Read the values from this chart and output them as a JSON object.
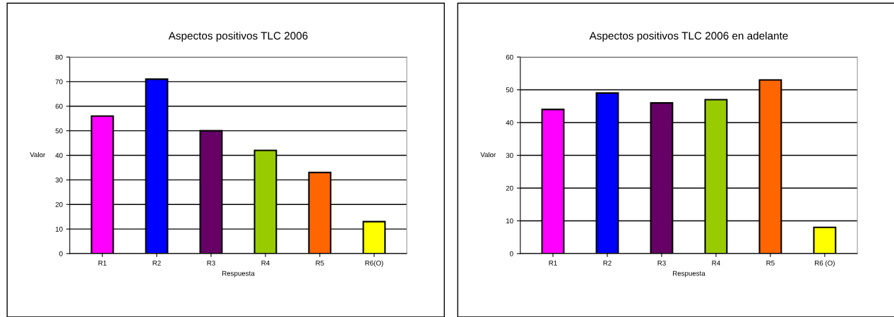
{
  "chart_data": [
    {
      "type": "bar",
      "title": "Aspectos positivos TLC 2006",
      "xlabel": "Respuesta",
      "ylabel": "Valor",
      "categories": [
        "R1",
        "R2",
        "R3",
        "R4",
        "R5",
        "R6(O)"
      ],
      "values": [
        56,
        71,
        50,
        42,
        33,
        13
      ],
      "colors": [
        "#ff00ff",
        "#0000ff",
        "#660066",
        "#99cc00",
        "#ff6600",
        "#ffff00"
      ],
      "ylim": [
        0,
        80
      ],
      "yticks": [
        0,
        10,
        20,
        30,
        40,
        50,
        60,
        70,
        80
      ],
      "grid": "y"
    },
    {
      "type": "bar",
      "title": "Aspectos positivos TLC 2006 en adelante",
      "xlabel": "Respuesta",
      "ylabel": "Valor",
      "categories": [
        "R1",
        "R2",
        "R3",
        "R4",
        "R5",
        "R6 (O)"
      ],
      "values": [
        44,
        49,
        46,
        47,
        53,
        8
      ],
      "colors": [
        "#ff00ff",
        "#0000ff",
        "#660066",
        "#99cc00",
        "#ff6600",
        "#ffff00"
      ],
      "ylim": [
        0,
        60
      ],
      "yticks": [
        0,
        10,
        20,
        30,
        40,
        50,
        60
      ],
      "grid": "y"
    }
  ]
}
